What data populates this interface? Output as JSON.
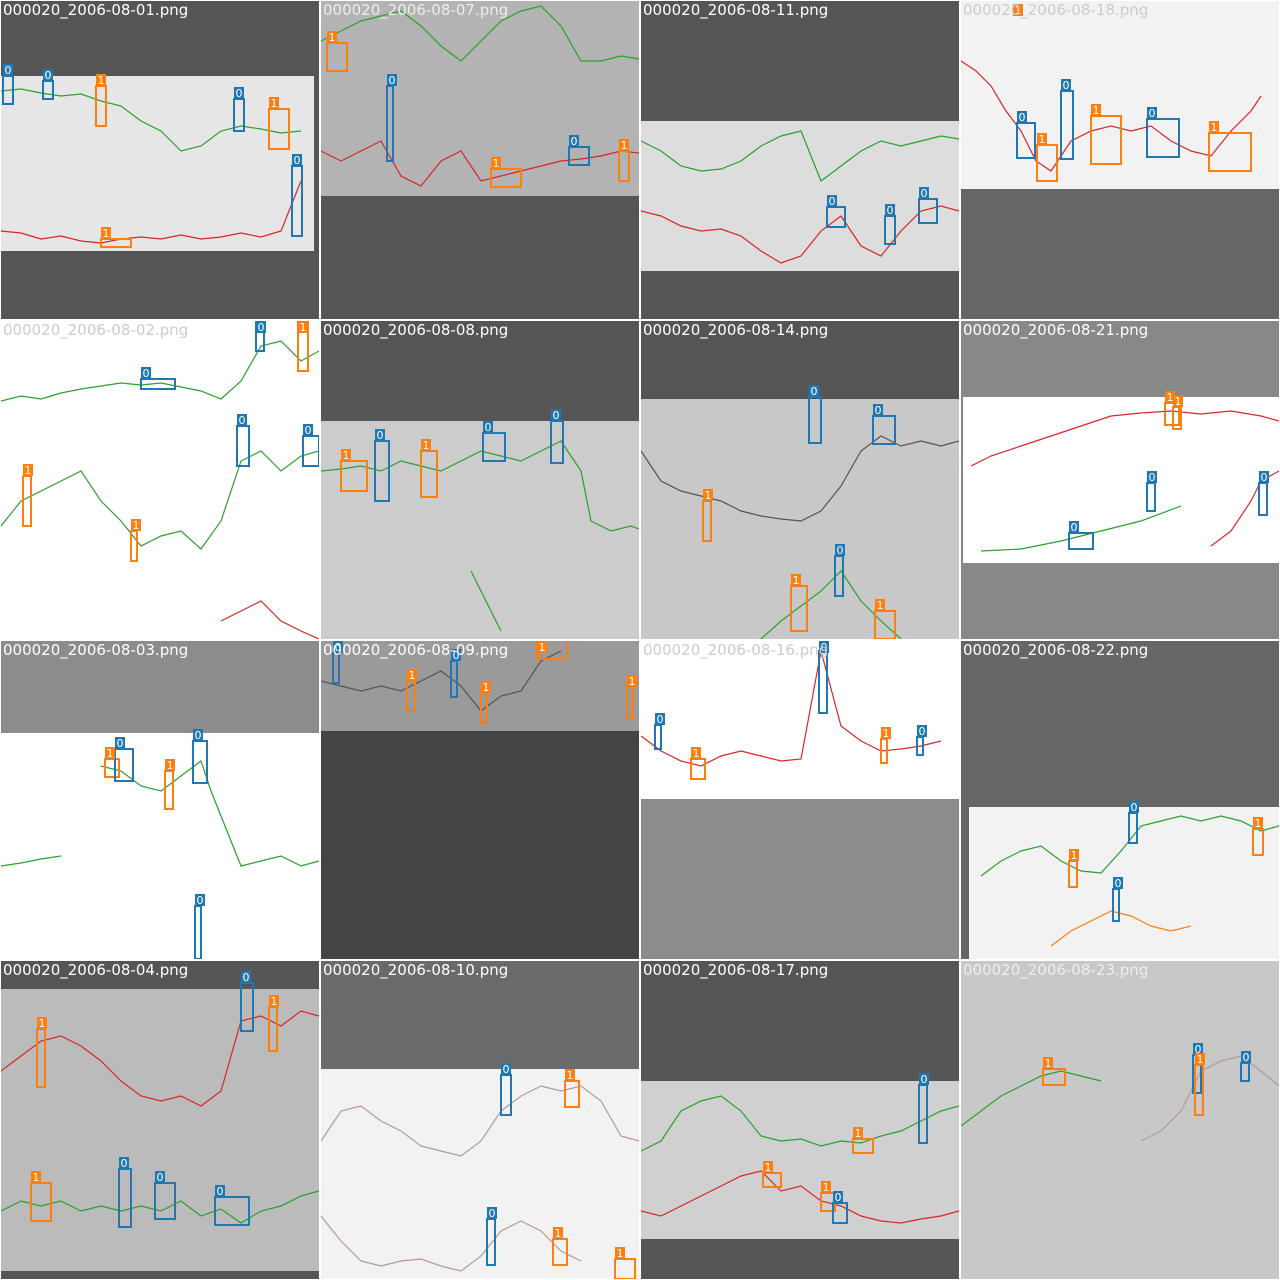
{
  "colors": {
    "class_0_box": "#1f77b4",
    "class_1_box": "#ff7f0e",
    "candle_up": "#d62728",
    "candle_down": "#2ca02c"
  },
  "tiles": [
    {
      "file": "000020_2006-08-01.png",
      "outer": "#555555",
      "inner": "#e6e6e6",
      "caption_color": "#ffffff"
    },
    {
      "file": "000020_2006-08-07.png",
      "outer": "#b3b3b3",
      "inner": "#b3b3b3",
      "caption_color": "#eeeeee"
    },
    {
      "file": "000020_2006-08-11.png",
      "outer": "#555555",
      "inner": "#dddddd",
      "caption_color": "#ffffff"
    },
    {
      "file": "000020_2006-08-18.png",
      "outer": "#f2f2f2",
      "inner": "#f2f2f2",
      "caption_color": "#cccccc"
    },
    {
      "file": "000020_2006-08-02.png",
      "outer": "#ffffff",
      "inner": "#ffffff",
      "caption_color": "#cccccc"
    },
    {
      "file": "000020_2006-08-08.png",
      "outer": "#555555",
      "inner": "#cccccc",
      "caption_color": "#ffffff"
    },
    {
      "file": "000020_2006-08-14.png",
      "outer": "#555555",
      "inner": "#c8c8c8",
      "caption_color": "#ffffff"
    },
    {
      "file": "000020_2006-08-21.png",
      "outer": "#888888",
      "inner": "#ffffff",
      "caption_color": "#ffffff"
    },
    {
      "file": "000020_2006-08-03.png",
      "outer": "#8c8c8c",
      "inner": "#ffffff",
      "caption_color": "#ffffff"
    },
    {
      "file": "000020_2006-08-09.png",
      "outer": "#444444",
      "inner": "#9a9a9a",
      "caption_color": "#ffffff"
    },
    {
      "file": "000020_2006-08-16.png",
      "outer": "#8c8c8c",
      "inner": "#ffffff",
      "caption_color": "#cccccc"
    },
    {
      "file": "000020_2006-08-22.png",
      "outer": "#666666",
      "inner": "#f2f2f2",
      "caption_color": "#ffffff"
    },
    {
      "file": "000020_2006-08-04.png",
      "outer": "#555555",
      "inner": "#bbbbbb",
      "caption_color": "#ffffff"
    },
    {
      "file": "000020_2006-08-10.png",
      "outer": "#6a6a6a",
      "inner": "#f2f2f2",
      "caption_color": "#ffffff"
    },
    {
      "file": "000020_2006-08-17.png",
      "outer": "#555555",
      "inner": "#d0d0d0",
      "caption_color": "#ffffff"
    },
    {
      "file": "000020_2006-08-23.png",
      "outer": "#c8c8c8",
      "inner": "#c8c8c8",
      "caption_color": "#eeeeee"
    }
  ],
  "box_labels": {
    "class_0": "0",
    "class_1": "1"
  }
}
